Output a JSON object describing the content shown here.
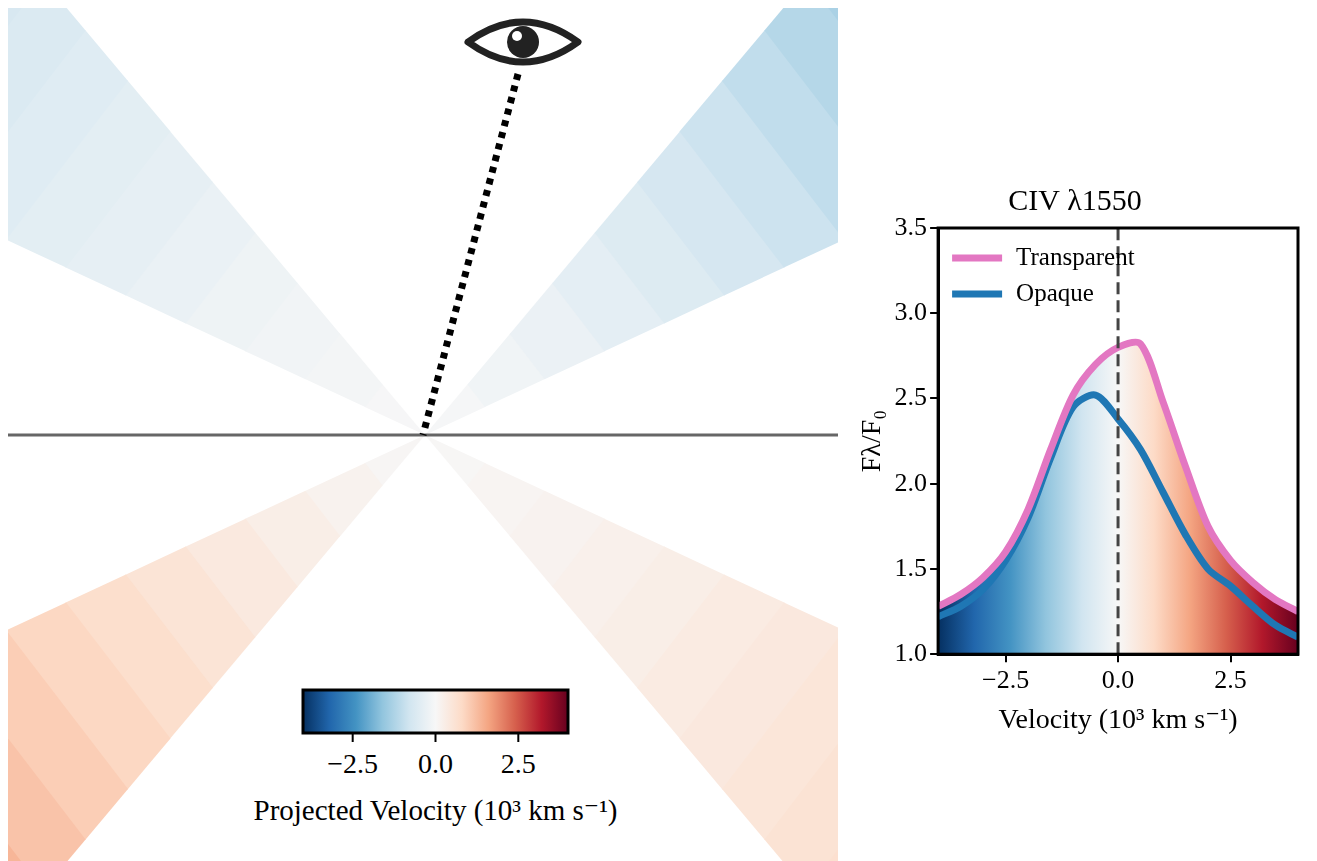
{
  "chart_data": {
    "type": "line",
    "title": "CIV λ1550",
    "x_label": "Velocity (10³ km s⁻¹)",
    "y_label": "Fλ/F₀",
    "xlim": [
      -4,
      4
    ],
    "ylim": [
      1.0,
      3.5
    ],
    "xticks": [
      {
        "value": -2.5,
        "label": "−2.5"
      },
      {
        "value": 0,
        "label": "0.0"
      },
      {
        "value": 2.5,
        "label": "2.5"
      }
    ],
    "yticks": [
      {
        "value": 1,
        "label": "1.0"
      },
      {
        "value": 1.5,
        "label": "1.5"
      },
      {
        "value": 2,
        "label": "2.0"
      },
      {
        "value": 2.5,
        "label": "2.5"
      },
      {
        "value": 3,
        "label": "3.0"
      },
      {
        "value": 3.5,
        "label": "3.5"
      }
    ],
    "legend": "upper left",
    "grid": false,
    "vlines": [
      0
    ],
    "x": [
      -4,
      -3.5,
      -3,
      -2.5,
      -2,
      -1.5,
      -1,
      -0.5,
      0,
      0.5,
      1,
      1.5,
      2,
      2.5,
      3,
      3.5,
      4
    ],
    "series": [
      {
        "name": "Transparent",
        "color": "#e377c2",
        "values": [
          1.28,
          1.35,
          1.45,
          1.6,
          1.85,
          2.2,
          2.52,
          2.7,
          2.8,
          2.82,
          2.48,
          2.1,
          1.75,
          1.55,
          1.42,
          1.32,
          1.25
        ]
      },
      {
        "name": "Opaque",
        "color": "#1f77b4",
        "values": [
          1.22,
          1.28,
          1.38,
          1.55,
          1.8,
          2.15,
          2.45,
          2.52,
          2.38,
          2.2,
          1.95,
          1.7,
          1.5,
          1.4,
          1.28,
          1.17,
          1.1
        ]
      }
    ]
  },
  "diagram": {
    "colorbar": {
      "label": "Projected Velocity (10³ km s⁻¹)",
      "range": [
        -4,
        4
      ],
      "ticks": [
        {
          "value": -2.5,
          "label": "−2.5"
        },
        {
          "value": 0,
          "label": "0.0"
        },
        {
          "value": 2.5,
          "label": "2.5"
        }
      ]
    },
    "cones": [
      {
        "position": "upper left",
        "velocities": [
          -0.03,
          -0.08,
          -0.13,
          -0.2,
          -0.27,
          -0.35,
          -0.42,
          -0.5,
          -0.58,
          -0.65
        ]
      },
      {
        "position": "upper right",
        "velocities": [
          -0.05,
          -0.15,
          -0.25,
          -0.4,
          -0.55,
          -0.7,
          -0.85,
          -1.0,
          -1.15,
          -1.3
        ]
      },
      {
        "position": "lower left",
        "velocities": [
          0.05,
          0.15,
          0.27,
          0.4,
          0.55,
          0.7,
          0.85,
          1.0,
          1.15,
          1.35
        ]
      },
      {
        "position": "lower right",
        "velocities": [
          0.03,
          0.08,
          0.13,
          0.2,
          0.27,
          0.35,
          0.42,
          0.5,
          0.58,
          0.65
        ]
      }
    ]
  }
}
